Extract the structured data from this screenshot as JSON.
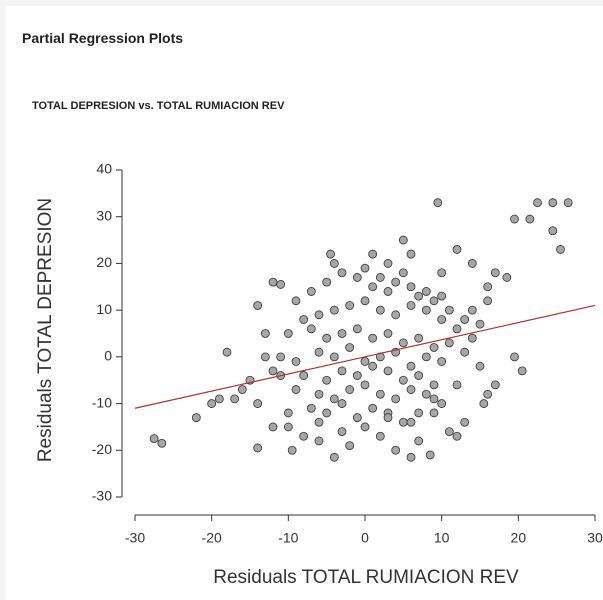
{
  "header": {
    "title": "Partial Regression Plots"
  },
  "chart_data": {
    "type": "scatter",
    "title": "TOTAL DEPRESION vs. TOTAL RUMIACION REV",
    "x_label": "Residuals TOTAL RUMIACION REV",
    "y_label": "Residuals TOTAL DEPRESION",
    "xlim": [
      -30,
      30
    ],
    "xticks": [
      -30,
      -20,
      -10,
      0,
      10,
      20,
      30
    ],
    "ylim": [
      -30,
      40
    ],
    "yticks": [
      -30,
      -20,
      -10,
      0,
      10,
      20,
      30,
      40
    ],
    "color": "#a6a6a6",
    "fit_line": {
      "color": "#b03030",
      "x": [
        -30,
        30
      ],
      "y": [
        -11,
        11
      ]
    },
    "x": [
      9.5,
      22.5,
      24.5,
      26.5,
      19.5,
      21.5,
      24.5,
      25.5,
      -27.5,
      -26.5,
      -18,
      -22,
      -20,
      -19,
      -14,
      -9.5,
      -4,
      4,
      6,
      8.5,
      14,
      16,
      17,
      18.5,
      20.5,
      19.5,
      17,
      16,
      15.5,
      12,
      -4.5,
      -4,
      5,
      1,
      3,
      6,
      10,
      12,
      14,
      -12,
      -11,
      -14,
      -13,
      -15,
      -16,
      -17,
      -12,
      -10,
      -8,
      -6,
      -2,
      2,
      7,
      11,
      13,
      -9,
      -7,
      -5,
      -3,
      -1,
      0,
      1,
      2,
      3,
      4,
      5,
      6,
      7,
      8,
      9,
      10,
      11,
      -8,
      -6,
      -4,
      -2,
      0,
      2,
      4,
      6,
      8,
      10,
      12,
      -10,
      -7,
      -5,
      -3,
      -1,
      1,
      3,
      5,
      7,
      9,
      11,
      13,
      -11,
      -9,
      -6,
      -4,
      -2,
      0,
      2,
      4,
      6,
      8,
      10,
      -12,
      -8,
      -5,
      -3,
      -1,
      1,
      3,
      5,
      7,
      9,
      -9,
      -6,
      -4,
      -2,
      0,
      2,
      4,
      6,
      8,
      10,
      12,
      -7,
      -5,
      -3,
      -1,
      1,
      3,
      5,
      7,
      9,
      -10,
      -6,
      -3,
      0,
      3,
      6,
      9,
      14,
      15,
      -13,
      -11,
      15,
      13,
      -14,
      16
    ],
    "y": [
      33,
      33,
      33,
      33,
      29.5,
      29.5,
      27,
      23,
      -17.5,
      -18.5,
      1,
      -13,
      -10,
      -9,
      -19.5,
      -20,
      -21.5,
      -20,
      -21.5,
      -21,
      10,
      15,
      18,
      17,
      -3,
      0,
      -6,
      -8,
      -10,
      -17,
      22,
      20,
      25,
      22,
      20,
      22,
      18,
      23,
      20,
      16,
      15.5,
      11,
      5,
      -5,
      -7,
      -9,
      -15,
      -12,
      -17,
      -18,
      -19,
      -17,
      -18,
      -16,
      -14,
      12,
      14,
      16,
      18,
      17,
      19,
      15,
      17,
      14,
      16,
      18,
      15,
      13,
      14,
      12,
      13,
      10,
      8,
      9,
      10,
      11,
      12,
      10,
      9,
      11,
      10,
      8,
      6,
      5,
      6,
      4,
      5,
      6,
      4,
      5,
      3,
      4,
      2,
      3,
      1,
      0,
      -1,
      1,
      0,
      2,
      -1,
      0,
      1,
      -2,
      0,
      -1,
      -3,
      -4,
      -5,
      -3,
      -4,
      -2,
      -3,
      -5,
      -4,
      -6,
      -7,
      -8,
      -9,
      -7,
      -6,
      -8,
      -9,
      -7,
      -8,
      -10,
      -6,
      -11,
      -12,
      -10,
      -13,
      -11,
      -12,
      -14,
      -12,
      -9,
      -15,
      -14,
      -16,
      -15,
      -13,
      -14,
      -12,
      4,
      7,
      0,
      -4,
      -2,
      8,
      -10,
      12
    ]
  }
}
